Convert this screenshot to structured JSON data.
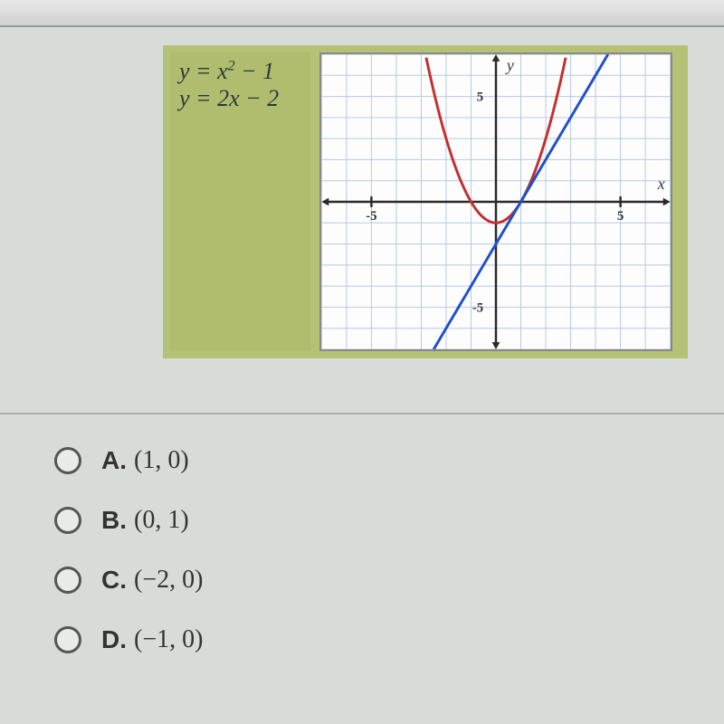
{
  "equations": {
    "line1_html": "y = x<span class=\"eq-sup\">2</span> − 1",
    "line2": "y = 2x − 2"
  },
  "graph": {
    "type": "line+parabola",
    "xlim": [
      -7,
      7
    ],
    "ylim": [
      -7,
      7
    ],
    "xtick_labels": {
      "-5": "-5",
      "5": "5"
    },
    "ytick_labels": {
      "5": "5",
      "-5": "-5"
    },
    "axis_label_x": "x",
    "axis_label_y": "y",
    "grid_color": "#b5c8e6",
    "axis_color": "#2a2a2a",
    "background_color": "#fdfdfd",
    "parabola": {
      "color": "#c43030",
      "stroke_width": 3,
      "equation": "x^2 - 1",
      "points_x": [
        -3,
        -2.5,
        -2,
        -1.5,
        -1,
        -0.5,
        0,
        0.5,
        1,
        1.5,
        2,
        2.5,
        3
      ]
    },
    "line": {
      "color": "#2050c8",
      "stroke_width": 3,
      "equation": "2x - 2",
      "x_from": -2.5,
      "x_to": 4.5
    },
    "arrow_size": 8
  },
  "options": [
    {
      "letter": "A.",
      "value": "(1, 0)"
    },
    {
      "letter": "B.",
      "value": "(0, 1)"
    },
    {
      "letter": "C.",
      "value": "(−2, 0)"
    },
    {
      "letter": "D.",
      "value": "(−1, 0)"
    }
  ]
}
